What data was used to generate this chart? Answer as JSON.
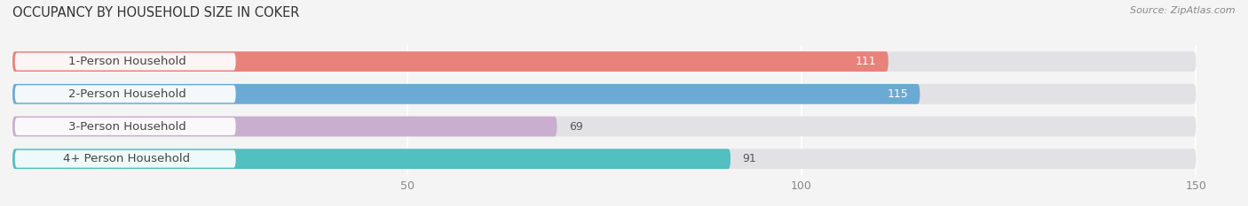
{
  "title": "OCCUPANCY BY HOUSEHOLD SIZE IN COKER",
  "source": "Source: ZipAtlas.com",
  "categories": [
    "1-Person Household",
    "2-Person Household",
    "3-Person Household",
    "4+ Person Household"
  ],
  "values": [
    111,
    115,
    69,
    91
  ],
  "bar_colors": [
    "#E8827A",
    "#6BAAD4",
    "#C9AECF",
    "#52BFC0"
  ],
  "xlim": [
    0,
    160
  ],
  "xlim_display": 150,
  "xticks": [
    50,
    100,
    150
  ],
  "background_color": "#f4f4f4",
  "bar_background_color": "#e2e2e6",
  "title_fontsize": 10.5,
  "label_fontsize": 9.5,
  "value_fontsize": 9
}
